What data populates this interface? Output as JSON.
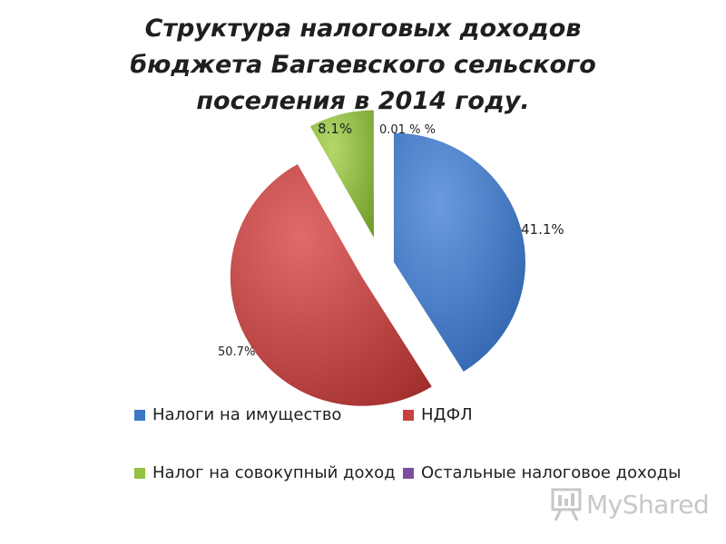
{
  "chart_data": {
    "type": "pie",
    "title_lines": [
      "Структура налоговых доходов",
      "бюджета Багаевского сельского",
      "поселения в 2014 году."
    ],
    "slices": [
      {
        "name": "Налоги на имущество",
        "value": 41.1,
        "label": "41.1%",
        "color": "#3c78c8"
      },
      {
        "name": "НДФЛ",
        "value": 50.7,
        "label": "50.7%",
        "color": "#c94040"
      },
      {
        "name": "Налог на совокупный доход",
        "value": 8.1,
        "label": "8.1%",
        "color": "#95c142"
      },
      {
        "name": "Остальные налоговое доходы",
        "value": 0.01,
        "label": "0.01 % %",
        "color": "#7b4fa0"
      }
    ],
    "legend_position": "bottom"
  },
  "watermark": {
    "text": "MyShared"
  }
}
